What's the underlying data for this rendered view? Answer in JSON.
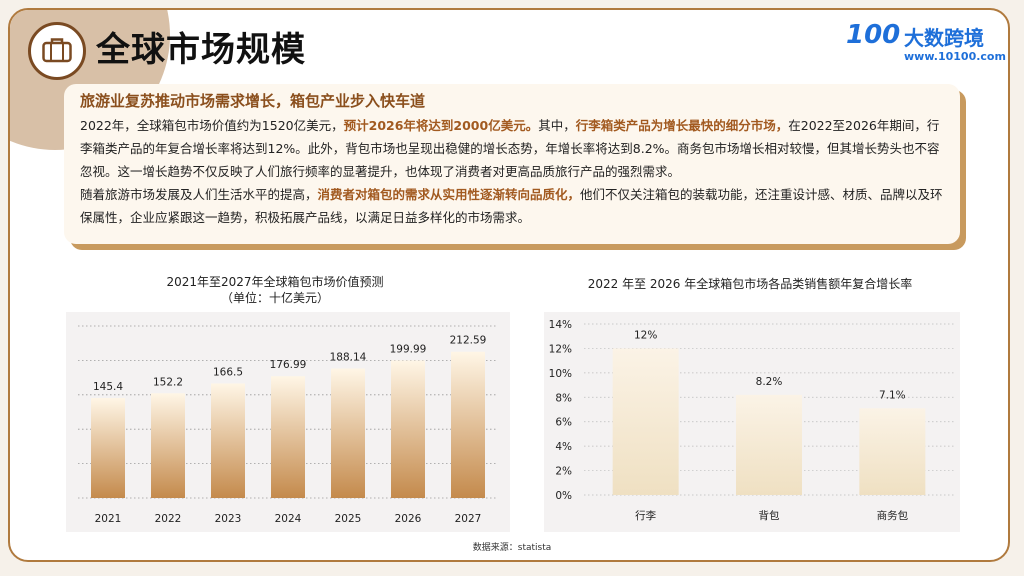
{
  "header": {
    "title": "全球市场规模",
    "logo": {
      "mark": "100",
      "name": "大数跨境",
      "url": "www.10100.com"
    }
  },
  "summary": {
    "heading": "旅游业复苏推动市场需求增长，箱包产业步入快车道",
    "p1_a": "2022年，全球箱包市场价值约为1520亿美元，",
    "p1_hl1": "预计2026年将达到2000亿美元。",
    "p1_b": "其中，",
    "p1_hl2": "行李箱类产品为增长最快的细分市场，",
    "p1_c": "在2022至2026年期间，行李箱类产品的年复合增长率将达到12%。此外，背包市场也呈现出稳健的增长态势，年增长率将达到8.2%。商务包市场增长相对较慢，但其增长势头也不容忽视。这一增长趋势不仅反映了人们旅行频率的显著提升，也体现了消费者对更高品质旅行产品的强烈需求。",
    "p2_a": "随着旅游市场发展及人们生活水平的提高，",
    "p2_hl": "消费者对箱包的需求从实用性逐渐转向品质化，",
    "p2_b": "他们不仅关注箱包的装载功能，还注重设计感、材质、品牌以及环保属性，企业应紧跟这一趋势，积极拓展产品线，以满足日益多样化的市场需求。"
  },
  "chart_data": [
    {
      "type": "bar",
      "title": "2021年至2027年全球箱包市场价值预测",
      "subtitle": "（单位：十亿美元）",
      "categories": [
        "2021",
        "2022",
        "2023",
        "2024",
        "2025",
        "2026",
        "2027"
      ],
      "values": [
        145.4,
        152.2,
        166.5,
        176.99,
        188.14,
        199.99,
        212.59
      ],
      "value_labels": [
        "145.4",
        "152.2",
        "166.5",
        "176.99",
        "188.14",
        "199.99",
        "212.59"
      ],
      "ylim": [
        0,
        250
      ],
      "grid": true,
      "colors": {
        "bar_top": "#fff6e6",
        "bar_bottom": "#c48a4c"
      }
    },
    {
      "type": "bar",
      "title": "2022 年至 2026 年全球箱包市场各品类销售额年复合增长率",
      "categories": [
        "行李",
        "背包",
        "商务包"
      ],
      "values": [
        12,
        8.2,
        7.1
      ],
      "value_labels": [
        "12%",
        "8.2%",
        "7.1%"
      ],
      "y_ticks": [
        "0%",
        "2%",
        "4%",
        "6%",
        "8%",
        "10%",
        "12%",
        "14%"
      ],
      "ylim": [
        0,
        14
      ],
      "grid": true,
      "colors": {
        "bar_top": "#fbf3e6",
        "bar_bottom": "#efe0c2"
      }
    }
  ],
  "footer": {
    "source": "数据来源：statista"
  }
}
